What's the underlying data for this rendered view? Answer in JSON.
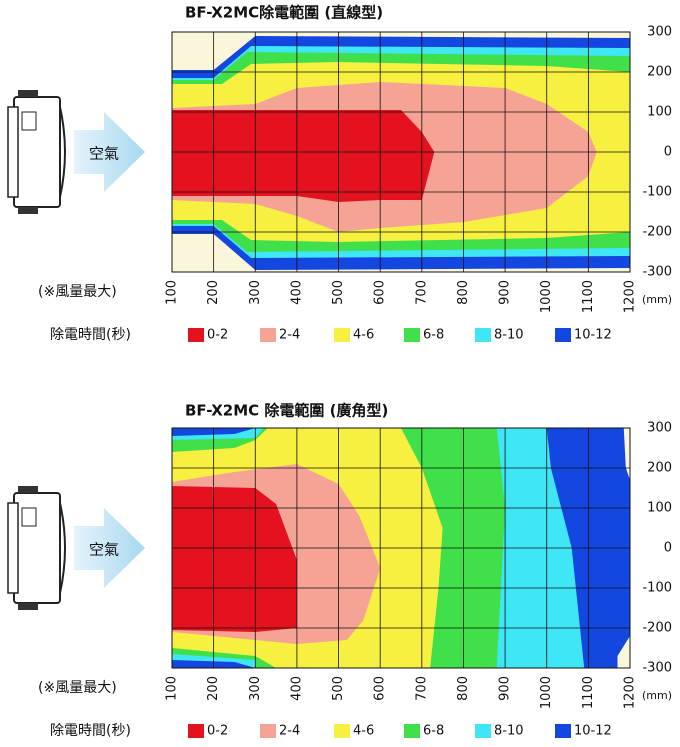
{
  "chart_data": [
    {
      "type": "contour",
      "title": "BF-X2MC除電範圍 (直線型)",
      "airflow_label": "空氣",
      "note": "(※風量最大)",
      "x_unit": "(mm)",
      "legend_title": "除電時間(秒)",
      "xlim": [
        100,
        1200
      ],
      "ylim": [
        -300,
        300
      ],
      "xticks": [
        100,
        200,
        300,
        400,
        500,
        600,
        700,
        800,
        900,
        1000,
        1100,
        1200
      ],
      "yticks": [
        300,
        200,
        100,
        0,
        -100,
        -200,
        -300
      ],
      "grid": true,
      "background": "#faf6dc",
      "series": [
        {
          "name": "0-2",
          "color": "#e3121e",
          "x": [
            100,
            650,
            700,
            730,
            700,
            600,
            500,
            400,
            100
          ],
          "y": [
            105,
            105,
            50,
            0,
            -120,
            -120,
            -125,
            -110,
            -110
          ]
        },
        {
          "name": "2-4",
          "color": "#f5a394",
          "x": [
            100,
            300,
            400,
            600,
            900,
            1000,
            1100,
            1120,
            1100,
            1000,
            800,
            600,
            500,
            400,
            300,
            100
          ],
          "y": [
            110,
            120,
            160,
            175,
            160,
            120,
            50,
            0,
            -60,
            -140,
            -175,
            -190,
            -200,
            -160,
            -130,
            -120
          ]
        },
        {
          "name": "4-6",
          "color": "#f7f040",
          "x": [
            100,
            220,
            290,
            500,
            1000,
            1200,
            1200,
            1000,
            500,
            290,
            220,
            100
          ],
          "y": [
            170,
            170,
            220,
            225,
            215,
            200,
            -200,
            -215,
            -225,
            -220,
            -170,
            -170
          ]
        },
        {
          "name": "6-8",
          "color": "#3fe04a",
          "x": [
            100,
            200,
            280,
            1200,
            1200,
            280,
            200,
            100
          ],
          "y": [
            180,
            180,
            250,
            240,
            -240,
            -250,
            -180,
            -180
          ]
        },
        {
          "name": "8-10",
          "color": "#3fe6f6",
          "x": [
            100,
            200,
            290,
            1200,
            1200,
            290,
            200,
            100
          ],
          "y": [
            185,
            185,
            265,
            260,
            -260,
            -265,
            -185,
            -185
          ]
        },
        {
          "name": "10-12",
          "color": "#1446e0",
          "x": [
            100,
            200,
            300,
            1200,
            1200,
            300,
            200,
            100
          ],
          "y": [
            205,
            205,
            290,
            285,
            -290,
            -295,
            -205,
            -205
          ]
        }
      ]
    },
    {
      "type": "contour",
      "title": "BF-X2MC 除電範圍 (廣角型)",
      "airflow_label": "空氣",
      "note": "(※風量最大)",
      "x_unit": "(mm)",
      "legend_title": "除電時間(秒)",
      "xlim": [
        100,
        1200
      ],
      "ylim": [
        -300,
        300
      ],
      "xticks": [
        100,
        200,
        300,
        400,
        500,
        600,
        700,
        800,
        900,
        1000,
        1100,
        1200
      ],
      "yticks": [
        300,
        200,
        100,
        0,
        -100,
        -200,
        -300
      ],
      "grid": true,
      "background": "#faf6dc",
      "series": [
        {
          "name": "0-2",
          "color": "#e3121e",
          "x": [
            100,
            300,
            350,
            400,
            400,
            300,
            100
          ],
          "y": [
            155,
            150,
            110,
            -30,
            -200,
            -210,
            -205
          ]
        },
        {
          "name": "2-4",
          "color": "#f5a394",
          "x": [
            100,
            250,
            400,
            500,
            550,
            600,
            560,
            520,
            400,
            300,
            100
          ],
          "y": [
            165,
            190,
            210,
            160,
            80,
            -50,
            -180,
            -230,
            -240,
            -230,
            -210
          ]
        },
        {
          "name": "4-6",
          "color": "#f7f040",
          "x": [
            100,
            250,
            300,
            330,
            650,
            700,
            750,
            740,
            720,
            350,
            300,
            100
          ],
          "y": [
            240,
            250,
            270,
            300,
            300,
            200,
            50,
            -100,
            -300,
            -300,
            -270,
            -250
          ]
        },
        {
          "name": "6-8",
          "color": "#3fe04a",
          "x": [
            100,
            300,
            320,
            880,
            900,
            890,
            880,
            300,
            300,
            100
          ],
          "y": [
            270,
            275,
            300,
            300,
            100,
            -100,
            -300,
            -300,
            -280,
            -265
          ]
        },
        {
          "name": "8-10",
          "color": "#3fe6f6",
          "x": [
            100,
            250,
            300,
            1000,
            1010,
            1060,
            1080,
            1090,
            300,
            250,
            100
          ],
          "y": [
            280,
            285,
            300,
            300,
            200,
            0,
            -200,
            -300,
            -300,
            -285,
            -280
          ]
        },
        {
          "name": "10-12",
          "color": "#1446e0",
          "x": [
            100,
            1185,
            1190,
            1200,
            1200,
            1170,
            1170,
            100
          ],
          "y": [
            300,
            300,
            200,
            170,
            -220,
            -270,
            -300,
            -300
          ]
        }
      ]
    }
  ]
}
